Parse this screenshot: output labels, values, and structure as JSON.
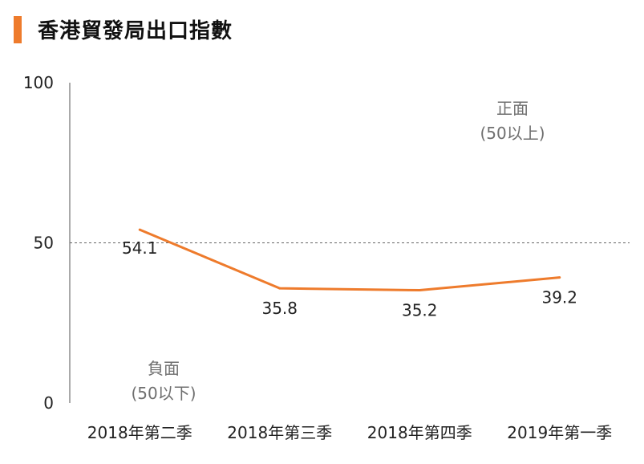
{
  "header": {
    "title": "香港貿發局出口指數"
  },
  "chart_data": {
    "type": "line",
    "title": "香港貿發局出口指數",
    "categories": [
      "2018年第二季",
      "2018年第三季",
      "2018年第四季",
      "2019年第一季"
    ],
    "series": [
      {
        "name": "出口指數",
        "values": [
          54.1,
          35.8,
          35.2,
          39.2
        ],
        "color": "#ee7b2c"
      }
    ],
    "data_labels": [
      "54.1",
      "35.8",
      "35.2",
      "39.2"
    ],
    "ylim": [
      0,
      100
    ],
    "yticks": [
      0,
      50,
      100
    ],
    "reference_line": 50,
    "annotations": {
      "positive": {
        "line1": "正面",
        "line2": "(50以上)"
      },
      "negative": {
        "line1": "負面",
        "line2": "(50以下)"
      }
    },
    "xlabel": "",
    "ylabel": ""
  }
}
